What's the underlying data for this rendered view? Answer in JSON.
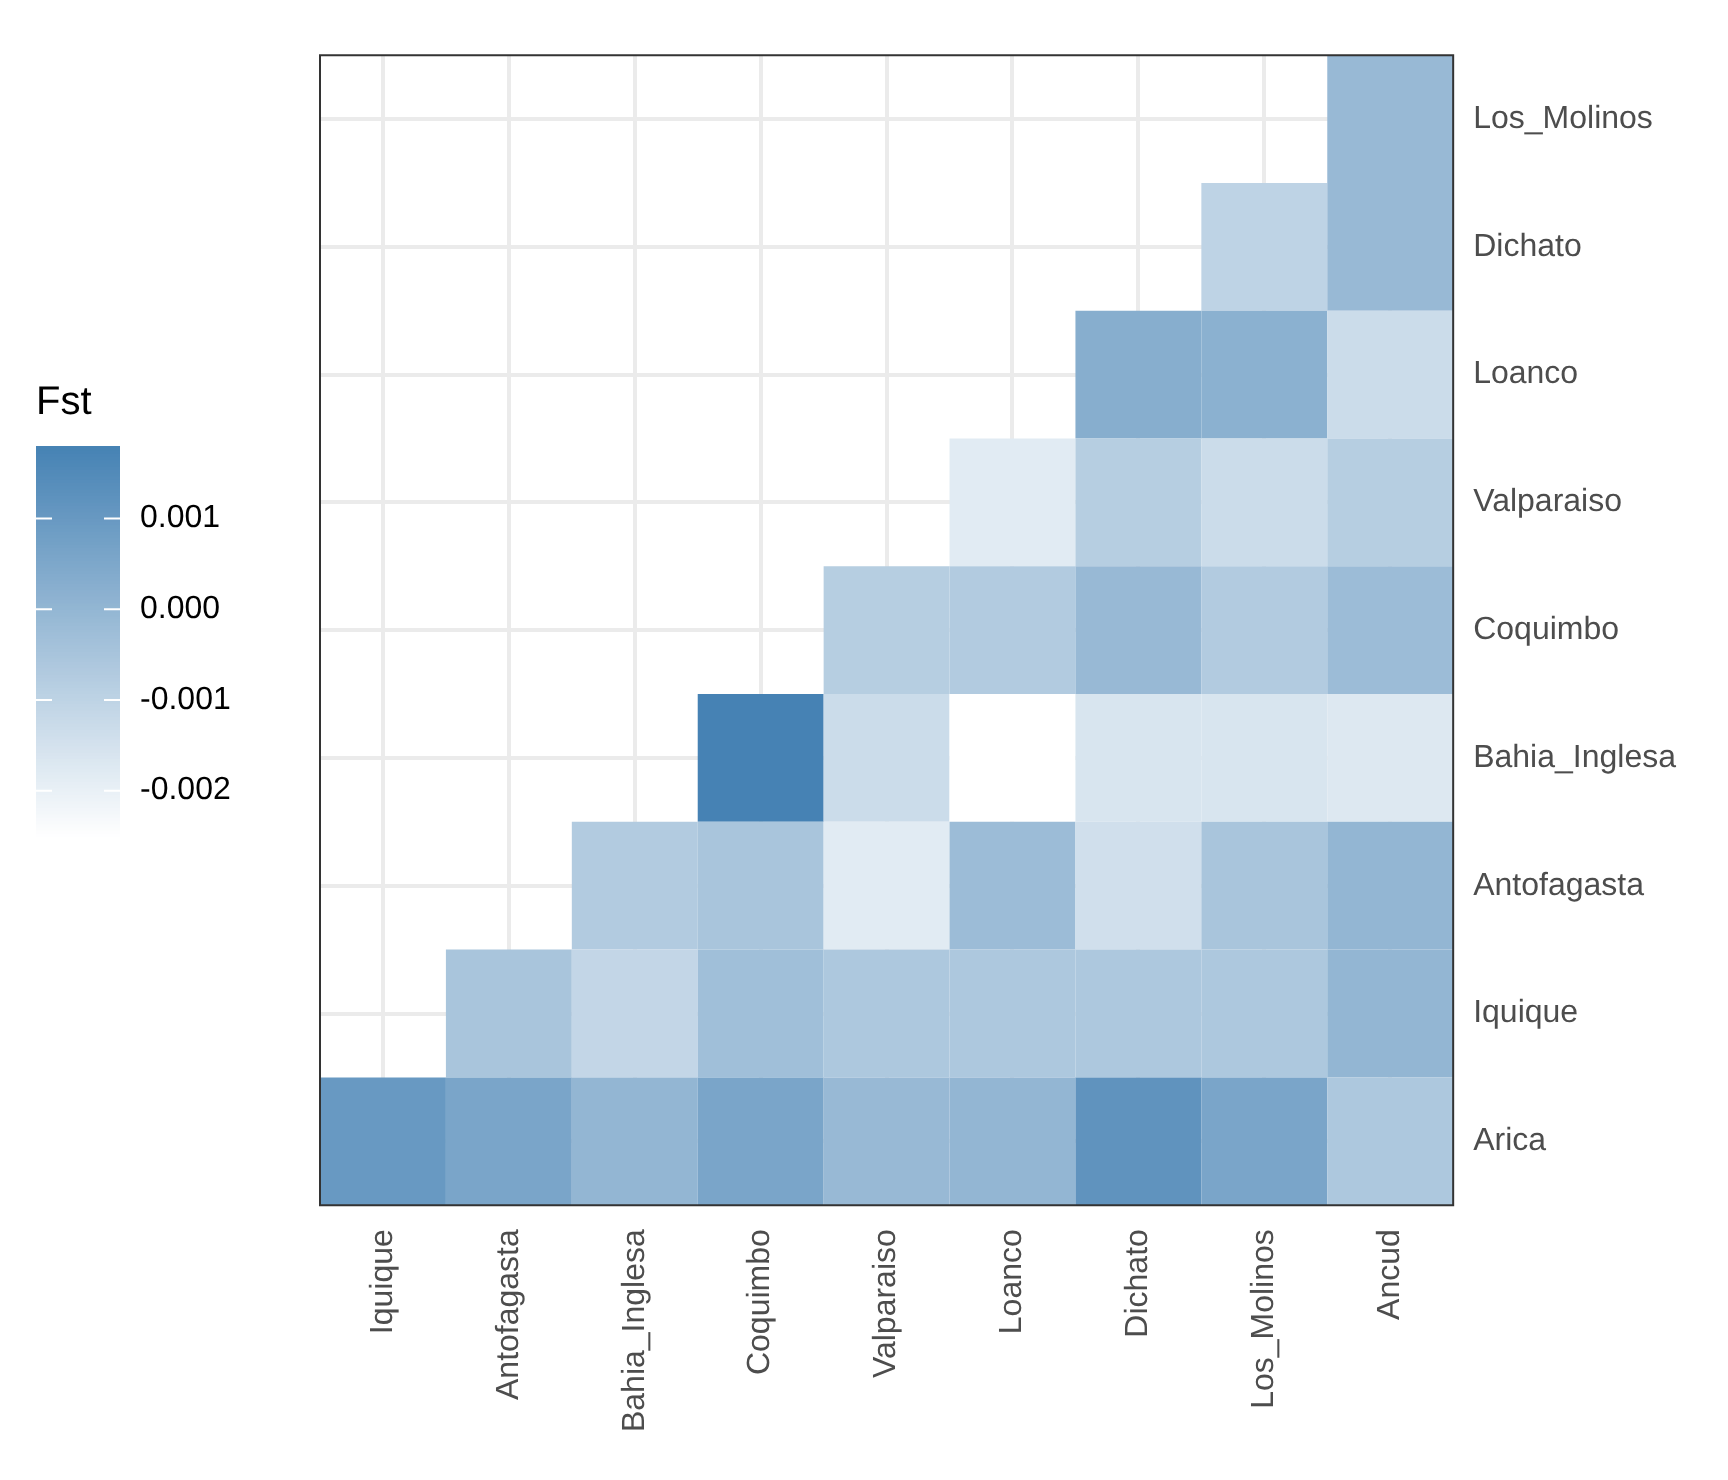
{
  "chart_data": {
    "type": "heatmap",
    "clabel": "Fst",
    "categories": [
      "Iquique",
      "Antofagasta",
      "Bahia_Inglesa",
      "Coquimbo",
      "Valparaiso",
      "Loanco",
      "Dichato",
      "Los_Molinos",
      "Ancud"
    ],
    "y_categories": [
      "Los_Molinos",
      "Dichato",
      "Loanco",
      "Valparaiso",
      "Coquimbo",
      "Bahia_Inglesa",
      "Antofagasta",
      "Iquique",
      "Arica"
    ],
    "cells": [
      [
        null,
        null,
        null,
        null,
        null,
        null,
        null,
        null,
        -0.0001
      ],
      [
        null,
        null,
        null,
        null,
        null,
        null,
        null,
        -0.001,
        -0.0001
      ],
      [
        null,
        null,
        null,
        null,
        null,
        null,
        0.0003,
        0.0002,
        -0.0013
      ],
      [
        null,
        null,
        null,
        null,
        null,
        -0.0018,
        -0.0008,
        -0.0013,
        -0.0008
      ],
      [
        null,
        null,
        null,
        null,
        -0.0008,
        -0.0007,
        -0.0001,
        -0.0007,
        -0.0002
      ],
      [
        null,
        null,
        null,
        0.0018,
        -0.0013,
        -0.0025,
        -0.0016,
        -0.0016,
        -0.0017
      ],
      [
        null,
        null,
        -0.0007,
        -0.0005,
        -0.0018,
        -0.0002,
        -0.0014,
        -0.0005,
        0
      ],
      [
        null,
        -0.0005,
        -0.0011,
        -0.0003,
        -0.0006,
        -0.0006,
        -0.0006,
        -0.0006,
        0
      ],
      [
        0.001,
        0.0006,
        0,
        0.0006,
        -0.0001,
        0,
        0.0012,
        0.0006,
        -0.0006
      ]
    ],
    "clim": [
      -0.0025,
      0.0018
    ],
    "cticks": [
      0.001,
      {
        "value": 0,
        "label": "0.000"
      },
      -0.001,
      -0.002
    ],
    "grid": true
  }
}
